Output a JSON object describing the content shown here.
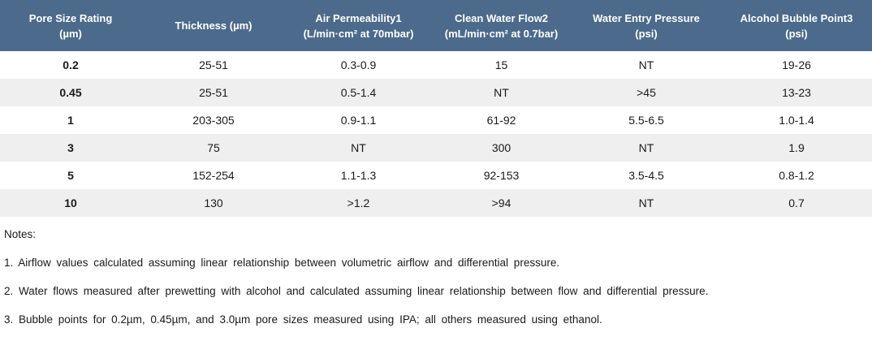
{
  "table": {
    "headers": [
      {
        "lines": [
          "Pore Size Rating",
          "(µm)"
        ]
      },
      {
        "lines": [
          "Thickness (µm)"
        ]
      },
      {
        "lines": [
          "Air Permeability1",
          "(L/min·cm² at 70mbar)"
        ]
      },
      {
        "lines": [
          "Clean Water Flow2",
          "(mL/min·cm² at 0.7bar)"
        ]
      },
      {
        "lines": [
          "Water Entry Pressure",
          "(psi)"
        ]
      },
      {
        "lines": [
          "Alcohol Bubble Point3",
          "(psi)"
        ]
      }
    ],
    "rows": [
      [
        "0.2",
        "25-51",
        "0.3-0.9",
        "15",
        "NT",
        "19-26"
      ],
      [
        "0.45",
        "25-51",
        "0.5-1.4",
        "NT",
        ">45",
        "13-23"
      ],
      [
        "1",
        "203-305",
        "0.9-1.1",
        "61-92",
        "5.5-6.5",
        "1.0-1.4"
      ],
      [
        "3",
        "75",
        "NT",
        "300",
        "NT",
        "1.9"
      ],
      [
        "5",
        "152-254",
        "1.1-1.3",
        "92-153",
        "3.5-4.5",
        "0.8-1.2"
      ],
      [
        "10",
        "130",
        ">1.2",
        ">94",
        "NT",
        "0.7"
      ]
    ]
  },
  "notes": {
    "heading": "Notes:",
    "items": [
      "1. Airflow values calculated assuming linear relationship between volumetric airflow and differential pressure.",
      "2. Water flows measured after prewetting with alcohol and calculated assuming linear relationship between flow and differential pressure.",
      "3. Bubble points for 0.2µm, 0.45µm, and 3.0µm pore sizes measured using IPA; all others measured using ethanol."
    ]
  },
  "colors": {
    "header_bg": "#4C6A8B",
    "header_text": "#FFFFFF",
    "stripe_bg": "#EFEFEF",
    "row_bg": "#FFFFFF",
    "text": "#1A1A1A"
  }
}
